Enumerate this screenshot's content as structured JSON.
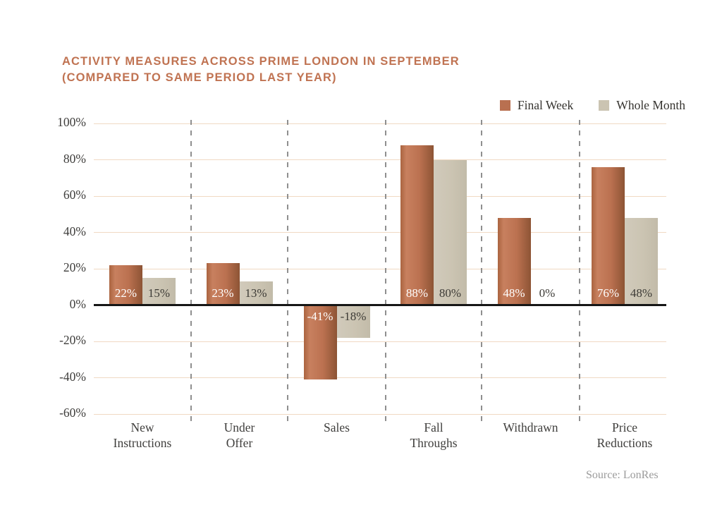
{
  "title": {
    "line1": "ACTIVITY MEASURES ACROSS PRIME LONDON IN SEPTEMBER",
    "line2": "(COMPARED TO SAME PERIOD LAST YEAR)"
  },
  "legend": {
    "items": [
      {
        "label": "Final Week",
        "color": "#b97050"
      },
      {
        "label": "Whole Month",
        "color": "#cbc4b2"
      }
    ]
  },
  "source": "Source: LonRes",
  "colors": {
    "title_text": "#c07352",
    "final_week_bar": "#b97050",
    "whole_month_bar": "#cbc4b2",
    "gridline": "#f0d9c3",
    "zero_line": "#161616",
    "axis_text": "#3f3e3c",
    "value_text_on_final": "#ffffff",
    "value_text_on_whole": "#3d3b36",
    "separator": "#8f8f8f",
    "source_text": "#9b9b9b"
  },
  "chart_data": {
    "type": "bar",
    "title": "Activity measures across prime London in September (compared to same period last year)",
    "categories": [
      "New Instructions",
      "Under Offer",
      "Sales",
      "Fall Throughs",
      "Withdrawn",
      "Price Reductions"
    ],
    "category_lines": [
      [
        "New",
        "Instructions"
      ],
      [
        "Under",
        "Offer"
      ],
      [
        "Sales"
      ],
      [
        "Fall",
        "Throughs"
      ],
      [
        "Withdrawn"
      ],
      [
        "Price",
        "Reductions"
      ]
    ],
    "series": [
      {
        "name": "Final Week",
        "values": [
          22,
          23,
          -41,
          88,
          48,
          76
        ],
        "labels": [
          "22%",
          "23%",
          "-41%",
          "88%",
          "48%",
          "76%"
        ]
      },
      {
        "name": "Whole Month",
        "values": [
          15,
          13,
          -18,
          80,
          0,
          48
        ],
        "labels": [
          "15%",
          "13%",
          "-18%",
          "80%",
          "0%",
          "48%"
        ]
      }
    ],
    "xlabel": "",
    "ylabel": "",
    "y_axis": {
      "min": -60,
      "max": 100,
      "tick_values": [
        100,
        80,
        60,
        40,
        20,
        0,
        -20,
        -40,
        -60
      ],
      "tick_labels": [
        "100%",
        "80%",
        "60%",
        "40%",
        "20%",
        "0%",
        "-20%",
        "-40%",
        "-60%"
      ]
    },
    "grid": "horizontal solid lines, dashed vertical category separators",
    "legend_position": "top-right",
    "zero_baseline": true
  }
}
